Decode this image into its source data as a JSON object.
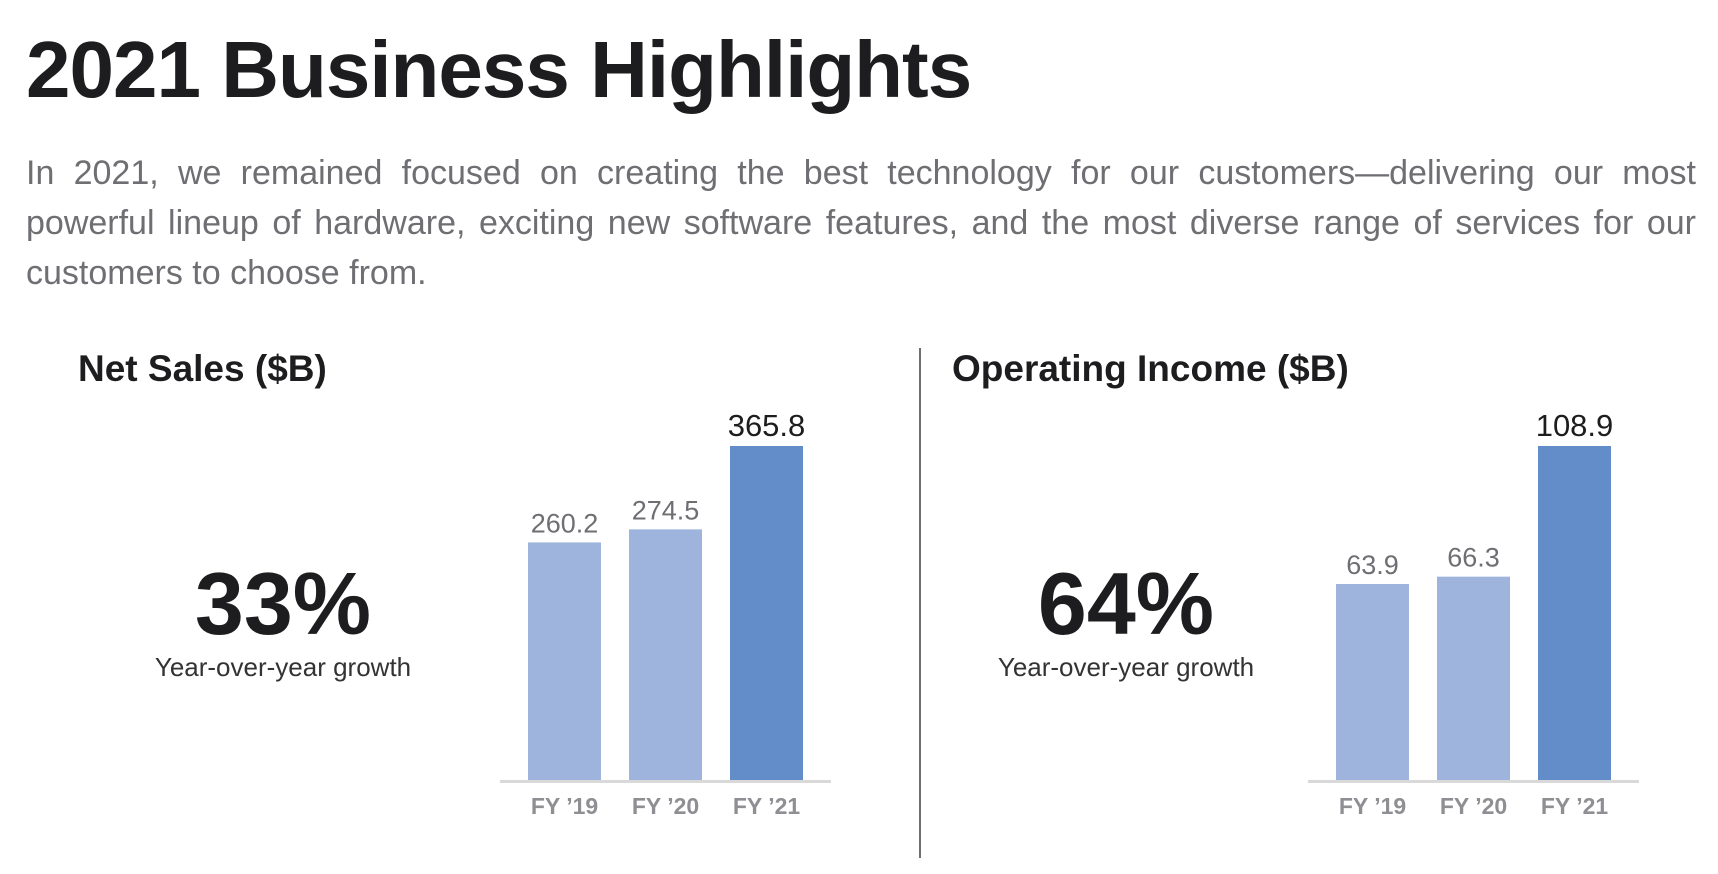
{
  "header": {
    "title": "2021 Business Highlights",
    "intro": "In 2021, we remained focused on creating the best technology for our customers—delivering our most powerful lineup of hardware, exciting new software features, and the most diverse range of services for our customers to choose from."
  },
  "colors": {
    "bar_light": "#9eb4dc",
    "bar_dark": "#628dc8",
    "axis": "#d9d9d9"
  },
  "net_sales": {
    "growth_value": "33%",
    "growth_label": "Year-over-year growth"
  },
  "operating_income": {
    "growth_value": "64%",
    "growth_label": "Year-over-year growth"
  },
  "chart_data": [
    {
      "type": "bar",
      "title": "Net Sales ($B)",
      "categories": [
        "FY ’19",
        "FY ’20",
        "FY ’21"
      ],
      "values": [
        260.2,
        274.5,
        365.8
      ],
      "labels": [
        "260.2",
        "274.5",
        "365.8"
      ],
      "ylim": [
        0,
        365.8
      ],
      "grid": false,
      "xlabel": "",
      "ylabel": ""
    },
    {
      "type": "bar",
      "title": "Operating Income ($B)",
      "categories": [
        "FY ’19",
        "FY ’20",
        "FY ’21"
      ],
      "values": [
        63.9,
        66.3,
        108.9
      ],
      "labels": [
        "63.9",
        "66.3",
        "108.9"
      ],
      "ylim": [
        0,
        108.9
      ],
      "grid": false,
      "xlabel": "",
      "ylabel": ""
    }
  ]
}
